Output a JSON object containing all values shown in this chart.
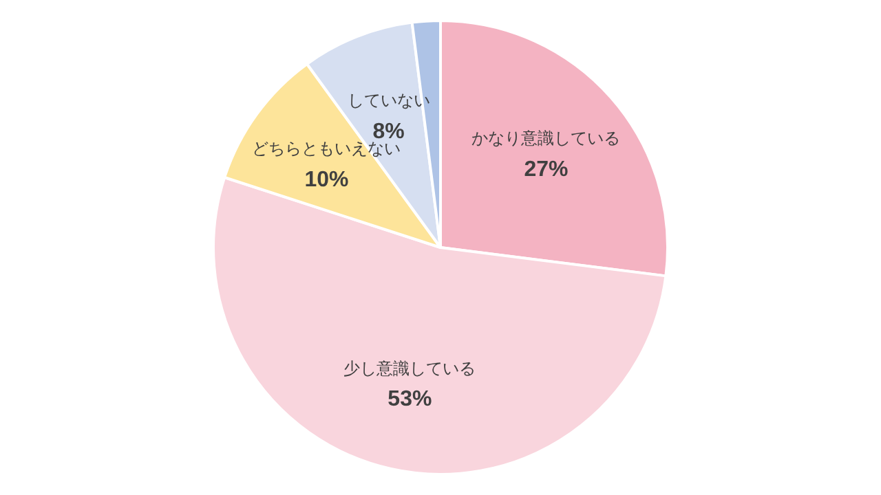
{
  "chart_data": {
    "type": "pie",
    "categories": [
      "かなり意識している",
      "少し意識している",
      "どちらともいえない",
      "していない",
      null
    ],
    "values": [
      27,
      53,
      10,
      8,
      2
    ],
    "value_labels": [
      "27%",
      "53%",
      "10%",
      "8%",
      null
    ],
    "colors": [
      "#f4b3c2",
      "#f9d5dd",
      "#fde49a",
      "#d6dff1",
      "#aec3e6"
    ],
    "legend": false
  }
}
